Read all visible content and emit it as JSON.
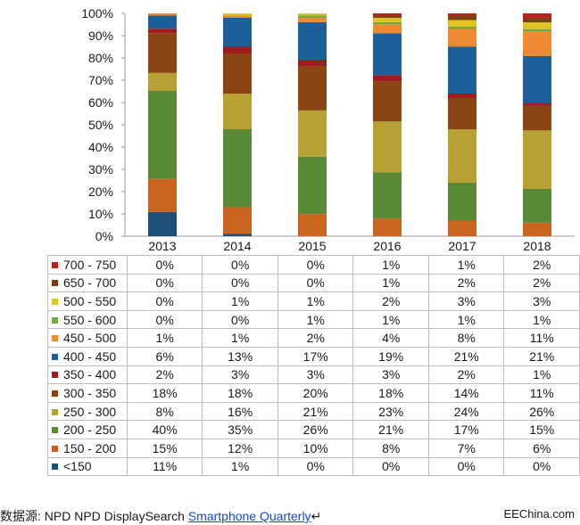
{
  "chart_data": {
    "type": "bar",
    "stacked": true,
    "categories": [
      "2013",
      "2014",
      "2015",
      "2016",
      "2017",
      "2018"
    ],
    "y_ticks": [
      "0%",
      "10%",
      "20%",
      "30%",
      "40%",
      "50%",
      "60%",
      "70%",
      "80%",
      "90%",
      "100%"
    ],
    "ylim": [
      0,
      100
    ],
    "series": [
      {
        "name": "<150",
        "color": "#1f4e79",
        "values": [
          11,
          1,
          0,
          0,
          0,
          0
        ],
        "labels": [
          "11%",
          "1%",
          "0%",
          "0%",
          "0%",
          "0%"
        ]
      },
      {
        "name": "150 - 200",
        "color": "#c9651e",
        "values": [
          15,
          12,
          10,
          8,
          7,
          6
        ],
        "labels": [
          "15%",
          "12%",
          "10%",
          "8%",
          "7%",
          "6%"
        ]
      },
      {
        "name": "200 - 250",
        "color": "#5a8a35",
        "values": [
          40,
          35,
          26,
          21,
          17,
          15
        ],
        "labels": [
          "40%",
          "35%",
          "26%",
          "21%",
          "17%",
          "15%"
        ]
      },
      {
        "name": "250 - 300",
        "color": "#b8a134",
        "values": [
          8,
          16,
          21,
          23,
          24,
          26
        ],
        "labels": [
          "8%",
          "16%",
          "21%",
          "23%",
          "24%",
          "26%"
        ]
      },
      {
        "name": "300 - 350",
        "color": "#8b4513",
        "values": [
          18,
          18,
          20,
          18,
          14,
          11
        ],
        "labels": [
          "18%",
          "18%",
          "20%",
          "18%",
          "14%",
          "11%"
        ]
      },
      {
        "name": "350 - 400",
        "color": "#9e1c1c",
        "values": [
          2,
          3,
          3,
          3,
          2,
          1
        ],
        "labels": [
          "2%",
          "3%",
          "3%",
          "3%",
          "2%",
          "1%"
        ]
      },
      {
        "name": "400 - 450",
        "color": "#1d5f99",
        "values": [
          6,
          13,
          17,
          19,
          21,
          21
        ],
        "labels": [
          "6%",
          "13%",
          "17%",
          "19%",
          "21%",
          "21%"
        ]
      },
      {
        "name": "450 - 500",
        "color": "#f08a32",
        "values": [
          1,
          1,
          2,
          4,
          8,
          11
        ],
        "labels": [
          "1%",
          "1%",
          "2%",
          "4%",
          "8%",
          "11%"
        ]
      },
      {
        "name": "550 - 600",
        "color": "#6fab43",
        "values": [
          0,
          0,
          1,
          1,
          1,
          1
        ],
        "labels": [
          "0%",
          "0%",
          "1%",
          "1%",
          "1%",
          "1%"
        ]
      },
      {
        "name": "500 - 550",
        "color": "#e0c325",
        "values": [
          0,
          1,
          1,
          2,
          3,
          3
        ],
        "labels": [
          "0%",
          "1%",
          "1%",
          "2%",
          "3%",
          "3%"
        ]
      },
      {
        "name": "650 - 700",
        "color": "#7b3f10",
        "values": [
          0,
          0,
          0,
          1,
          2,
          2
        ],
        "labels": [
          "0%",
          "0%",
          "0%",
          "1%",
          "2%",
          "2%"
        ]
      },
      {
        "name": "700 - 750",
        "color": "#c01f1f",
        "values": [
          0,
          0,
          0,
          1,
          1,
          2
        ],
        "labels": [
          "0%",
          "0%",
          "0%",
          "1%",
          "1%",
          "2%"
        ]
      }
    ],
    "table_order": [
      "700 - 750",
      "650 - 700",
      "500 - 550",
      "550 - 600",
      "450 - 500",
      "400 - 450",
      "350 - 400",
      "300 - 350",
      "250 - 300",
      "200 - 250",
      "150 - 200",
      "<150"
    ]
  },
  "footer": {
    "source_prefix": "数据源: NPD NPD DisplaySearch ",
    "source_link": "Smartphone Quarterly",
    "brand": "EEChina.com"
  }
}
